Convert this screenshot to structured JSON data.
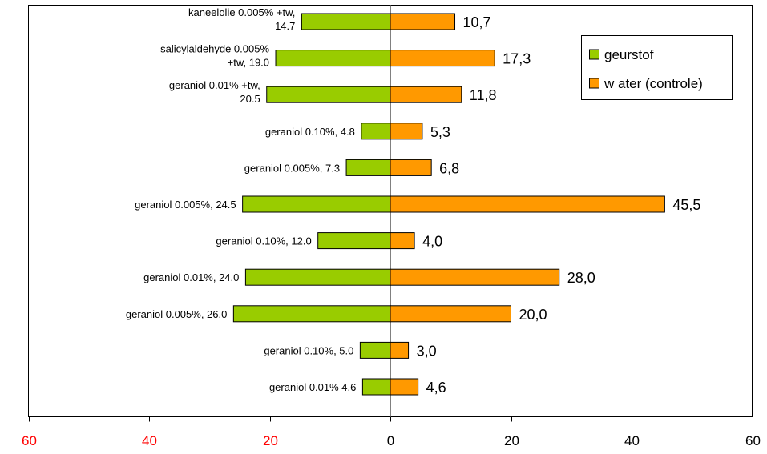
{
  "chart_data": {
    "type": "bar",
    "orientation": "horizontal-diverging",
    "categories": [
      [
        "kaneelolie 0.005% +tw,",
        "14.7"
      ],
      [
        "salicylaldehyde 0.005%",
        "+tw, 19.0"
      ],
      [
        "geraniol 0.01% +tw,",
        "20.5"
      ],
      [
        "geraniol 0.10%, 4.8"
      ],
      [
        "geraniol 0.005%, 7.3"
      ],
      [
        "geraniol 0.005%, 24.5"
      ],
      [
        "geraniol 0.10%, 12.0"
      ],
      [
        "geraniol 0.01%, 24.0"
      ],
      [
        "geraniol 0.005%, 26.0"
      ],
      [
        "geraniol 0.10%, 5.0"
      ],
      [
        "geraniol 0.01% 4.6"
      ]
    ],
    "series": [
      {
        "name": "geurstof",
        "color": "#99cc00",
        "side": "left",
        "values": [
          14.7,
          19.0,
          20.5,
          4.8,
          7.3,
          24.5,
          12.0,
          24.0,
          26.0,
          5.0,
          4.6
        ]
      },
      {
        "name": "w ater (controle)",
        "color": "#ff9900",
        "side": "right",
        "values": [
          10.7,
          17.3,
          11.8,
          5.3,
          6.8,
          45.5,
          4.0,
          28.0,
          20.0,
          3.0,
          4.6
        ],
        "data_labels": [
          "10,7",
          "17,3",
          "11,8",
          "5,3",
          "6,8",
          "45,5",
          "4,0",
          "28,0",
          "20,0",
          "3,0",
          "4,6"
        ]
      }
    ],
    "xlim": [
      -60,
      60
    ],
    "x_ticks": [
      -60,
      -40,
      -20,
      0,
      20,
      40,
      60
    ],
    "x_tick_labels": [
      "60",
      "40",
      "20",
      "0",
      "20",
      "40",
      "60"
    ],
    "x_tick_colors": [
      "#ff0000",
      "#ff0000",
      "#ff0000",
      "#000000",
      "#000000",
      "#000000",
      "#000000"
    ],
    "legend": {
      "position": "top-right",
      "items": [
        "geurstof",
        "w ater (controle)"
      ]
    },
    "grid": false,
    "title": "",
    "xlabel": "",
    "ylabel": ""
  }
}
